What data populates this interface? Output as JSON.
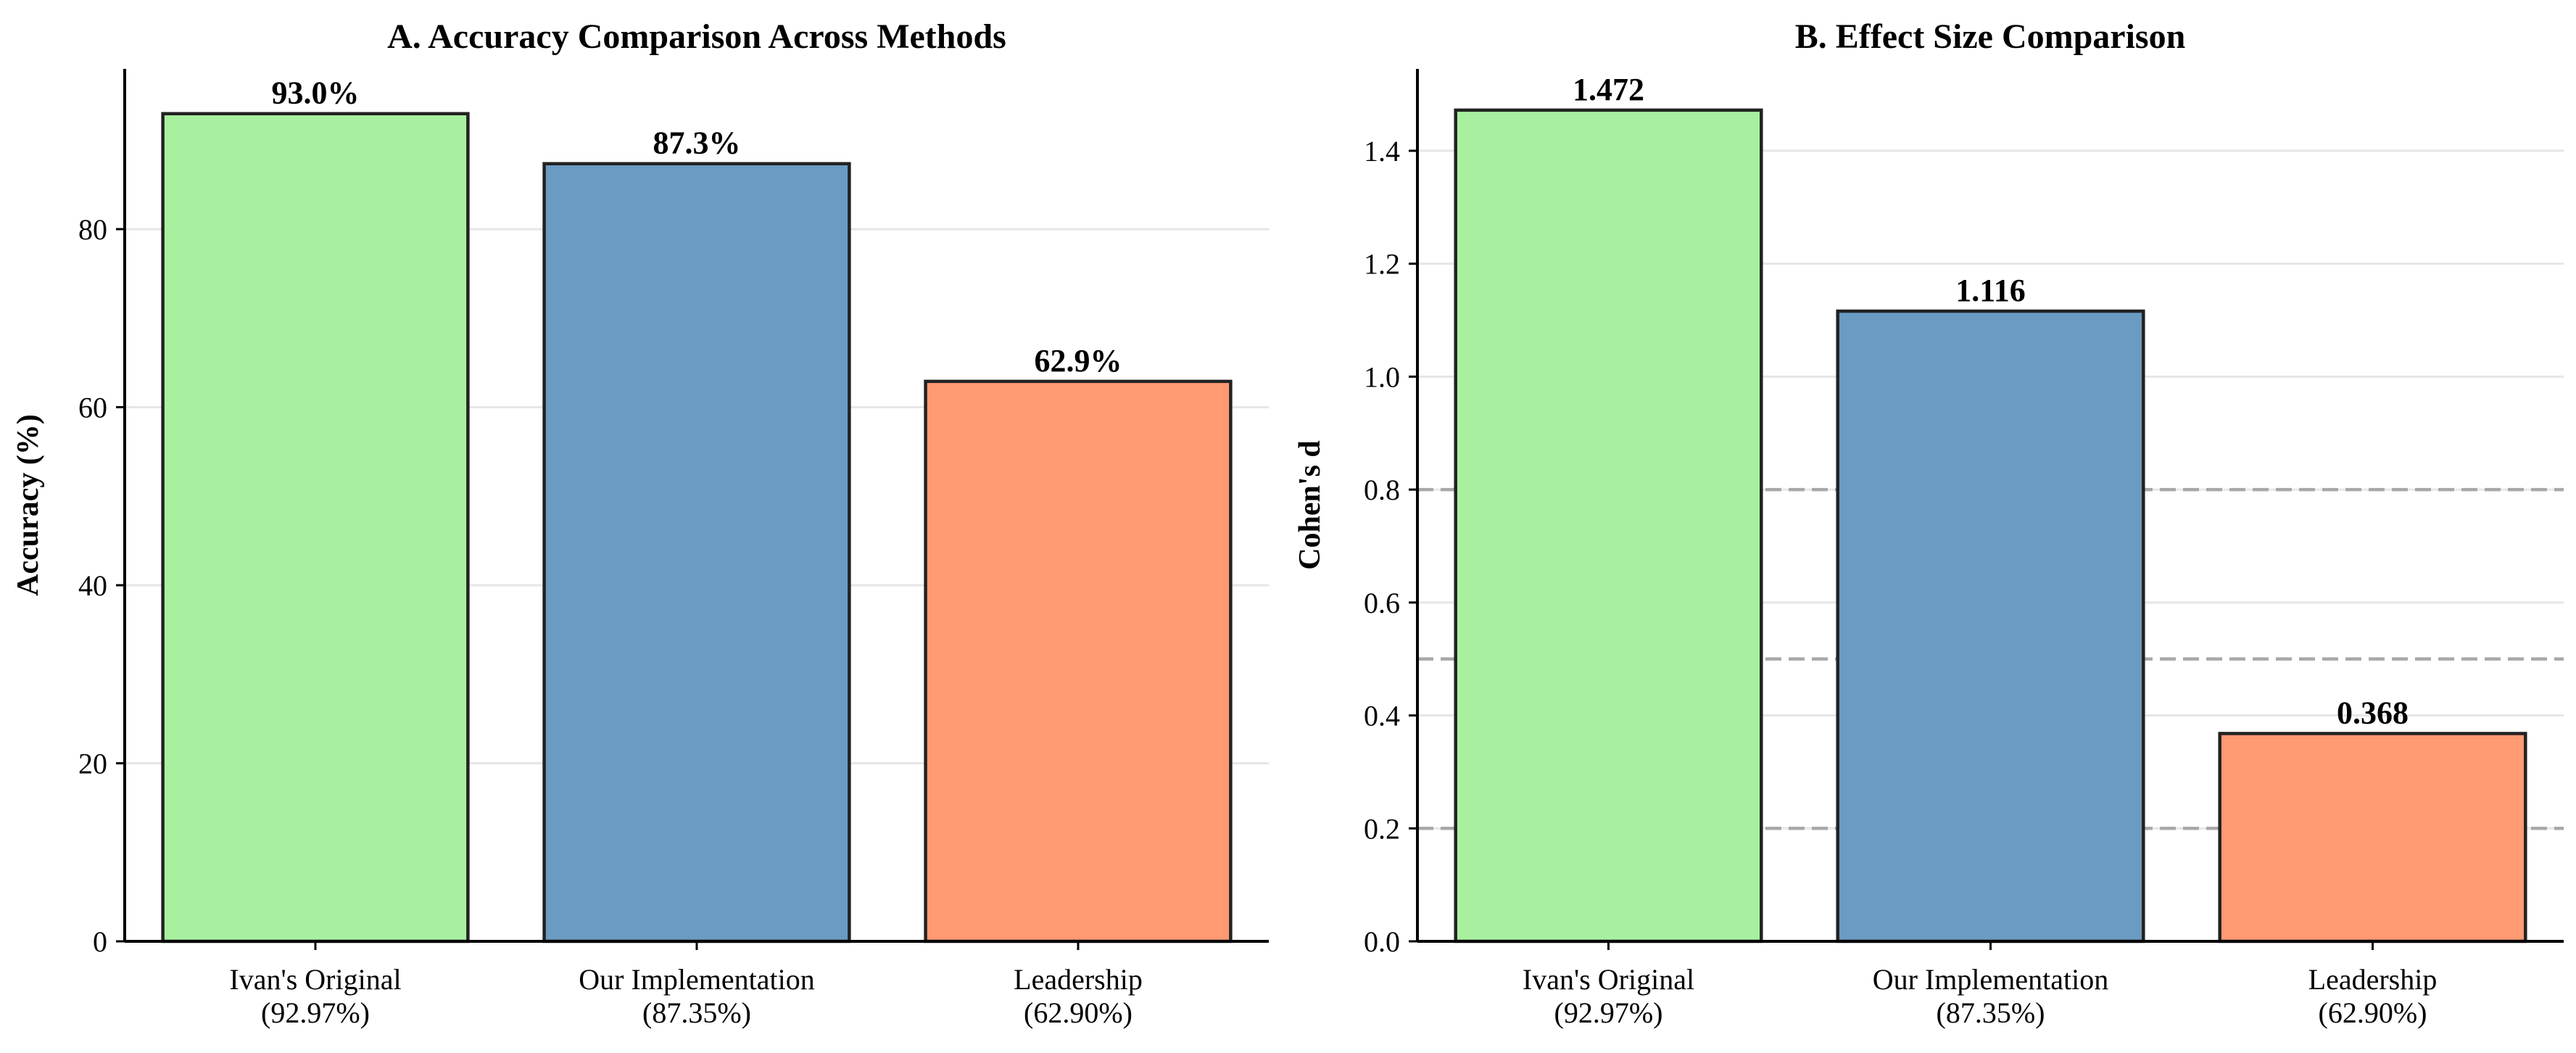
{
  "chart_data": [
    {
      "type": "bar",
      "title": "A. Accuracy Comparison Across Methods",
      "xlabel": "",
      "ylabel": "Accuracy (%)",
      "categories": [
        "Ivan's Original\n(92.97%)",
        "Our Implementation\n(87.35%)",
        "Leadership\n(62.90%)"
      ],
      "values": [
        92.97,
        87.35,
        62.9
      ],
      "value_labels": [
        "93.0%",
        "87.3%",
        "62.9%"
      ],
      "colors": [
        "#a8f0a0",
        "#6a9bc3",
        "#ff9a73"
      ],
      "ylim": [
        0,
        98
      ],
      "yticks": [
        0,
        20,
        40,
        60,
        80
      ],
      "grid": "y",
      "reference_lines": []
    },
    {
      "type": "bar",
      "title": "B. Effect Size Comparison",
      "xlabel": "",
      "ylabel": "Cohen's d",
      "categories": [
        "Ivan's Original\n(92.97%)",
        "Our Implementation\n(87.35%)",
        "Leadership\n(62.90%)"
      ],
      "values": [
        1.472,
        1.116,
        0.368
      ],
      "value_labels": [
        "1.472",
        "1.116",
        "0.368"
      ],
      "colors": [
        "#a8f0a0",
        "#6a9bc3",
        "#ff9a73"
      ],
      "ylim": [
        0,
        1.545
      ],
      "yticks": [
        0.0,
        0.2,
        0.4,
        0.6,
        0.8,
        1.0,
        1.2,
        1.4
      ],
      "ytick_labels": [
        "0.0",
        "0.2",
        "0.4",
        "0.6",
        "0.8",
        "1.0",
        "1.2",
        "1.4"
      ],
      "grid": "y",
      "reference_lines": [
        0.2,
        0.5,
        0.8
      ]
    }
  ],
  "style": {
    "edge_color": "#222222",
    "grid_color": "#e6e6e6",
    "ref_line_color": "#a8a8a8",
    "axis_color": "#000000"
  }
}
